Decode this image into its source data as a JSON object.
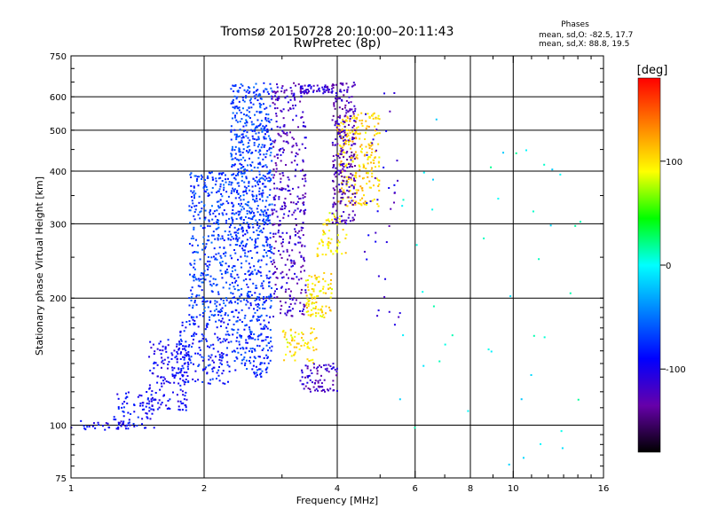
{
  "chart_data": {
    "type": "scatter",
    "title": "Tromsø 20150728 20:10:00–20:11:43",
    "subtitle": "RwPretec (8p)",
    "stats": {
      "heading": "Phases",
      "o_line": "mean, sd,O: -82.5, 17.7",
      "x_line": "mean, sd,X:  88.8, 19.5"
    },
    "xlabel": "Frequency [MHz]",
    "ylabel": "Stationary phase Virtual Height [km]",
    "x_scale": "log",
    "y_scale": "log",
    "xlim": [
      1,
      16
    ],
    "ylim": [
      75,
      750
    ],
    "x_ticks": [
      1,
      2,
      4,
      6,
      8,
      10,
      16
    ],
    "y_ticks": [
      75,
      100,
      200,
      300,
      400,
      500,
      600,
      750
    ],
    "colorbar": {
      "label": "[deg]",
      "range": [
        -180,
        180
      ],
      "ticks": [
        100,
        0,
        -100
      ],
      "colors": [
        "#ff0000",
        "#ff8000",
        "#ffff00",
        "#00ff00",
        "#00ffff",
        "#0080ff",
        "#0000ff",
        "#6600aa",
        "#000000"
      ]
    },
    "grid": true,
    "clusters": [
      {
        "x": [
          1.0,
          1.35
        ],
        "y": [
          97,
          103
        ],
        "phase": -95,
        "count": 30
      },
      {
        "x": [
          1.25,
          1.55
        ],
        "y": [
          98,
          120
        ],
        "phase": -90,
        "count": 70
      },
      {
        "x": [
          1.5,
          1.85
        ],
        "y": [
          108,
          160
        ],
        "phase": -95,
        "count": 160
      },
      {
        "x": [
          1.75,
          2.3
        ],
        "y": [
          125,
          180
        ],
        "phase": -85,
        "count": 180
      },
      {
        "x": [
          1.85,
          2.3
        ],
        "y": [
          180,
          400
        ],
        "phase": -70,
        "count": 360
      },
      {
        "x": [
          2.3,
          2.85
        ],
        "y": [
          130,
          300
        ],
        "phase": -75,
        "count": 420
      },
      {
        "x": [
          2.3,
          2.85
        ],
        "y": [
          300,
          650
        ],
        "phase": -70,
        "count": 500
      },
      {
        "x": [
          2.85,
          3.4
        ],
        "y": [
          180,
          650
        ],
        "phase": -120,
        "count": 380
      },
      {
        "x": [
          3.0,
          3.6
        ],
        "y": [
          140,
          170
        ],
        "phase": 100,
        "count": 60
      },
      {
        "x": [
          3.4,
          3.9
        ],
        "y": [
          180,
          230
        ],
        "phase": 100,
        "count": 90
      },
      {
        "x": [
          3.6,
          4.2
        ],
        "y": [
          250,
          320
        ],
        "phase": 100,
        "count": 60
      },
      {
        "x": [
          4.0,
          5.0
        ],
        "y": [
          330,
          550
        ],
        "phase": 105,
        "count": 260
      },
      {
        "x": [
          3.3,
          4.0
        ],
        "y": [
          120,
          140
        ],
        "phase": -120,
        "count": 80
      },
      {
        "x": [
          3.9,
          4.4
        ],
        "y": [
          300,
          650
        ],
        "phase": -125,
        "count": 260
      },
      {
        "x": [
          3.3,
          3.9
        ],
        "y": [
          610,
          640
        ],
        "phase": -115,
        "count": 60
      },
      {
        "x": [
          4.6,
          5.6
        ],
        "y": [
          170,
          620
        ],
        "phase": -110,
        "count": 40
      },
      {
        "x": [
          5.5,
          14.5
        ],
        "y": [
          80,
          580
        ],
        "phase": 0,
        "count": 45
      }
    ]
  }
}
